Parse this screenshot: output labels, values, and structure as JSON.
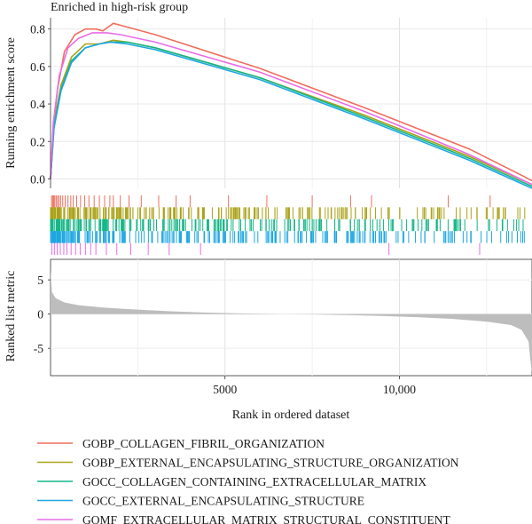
{
  "chart_data": {
    "type": "line",
    "title": "Enriched in high-risk group",
    "xlabel": "Rank in ordered dataset",
    "xlim": [
      0,
      13800
    ],
    "x_ticks": [
      5000,
      10000
    ],
    "x_tick_labels": [
      "5000",
      "10,000"
    ],
    "panels": {
      "running_score": {
        "ylabel": "Running enrichment score",
        "ylim": [
          -0.05,
          0.86
        ],
        "y_ticks": [
          0.0,
          0.2,
          0.4,
          0.6,
          0.8
        ],
        "y_tick_labels": [
          "0.0",
          "0.2",
          "0.4",
          "0.6",
          "0.8"
        ]
      },
      "ranked_metric": {
        "ylabel": "Ranked list metric",
        "ylim": [
          -9,
          8
        ],
        "y_ticks": [
          5,
          0,
          -5
        ],
        "y_tick_labels": [
          "5",
          "0",
          "-5"
        ],
        "points": [
          [
            0,
            6.5
          ],
          [
            40,
            3.2
          ],
          [
            150,
            2.3
          ],
          [
            400,
            1.7
          ],
          [
            800,
            1.3
          ],
          [
            1500,
            0.95
          ],
          [
            2500,
            0.65
          ],
          [
            3500,
            0.4
          ],
          [
            4500,
            0.22
          ],
          [
            5500,
            0.1
          ],
          [
            6500,
            0.02
          ],
          [
            7500,
            -0.05
          ],
          [
            8500,
            -0.15
          ],
          [
            9500,
            -0.28
          ],
          [
            10500,
            -0.45
          ],
          [
            11500,
            -0.7
          ],
          [
            12500,
            -1.1
          ],
          [
            13200,
            -1.6
          ],
          [
            13500,
            -2.3
          ],
          [
            13700,
            -4.0
          ],
          [
            13760,
            -7.0
          ],
          [
            13800,
            -8.5
          ]
        ]
      }
    },
    "series": [
      {
        "name": "GOBP_COLLAGEN_FIBRIL_ORGANIZATION",
        "color": "#ee6f5d",
        "points": [
          [
            0,
            0.0
          ],
          [
            80,
            0.28
          ],
          [
            200,
            0.48
          ],
          [
            400,
            0.68
          ],
          [
            700,
            0.77
          ],
          [
            1000,
            0.8
          ],
          [
            1300,
            0.8
          ],
          [
            1500,
            0.79
          ],
          [
            1800,
            0.83
          ],
          [
            2000,
            0.82
          ],
          [
            3000,
            0.77
          ],
          [
            6000,
            0.59
          ],
          [
            9000,
            0.38
          ],
          [
            12000,
            0.16
          ],
          [
            13600,
            0.01
          ],
          [
            13800,
            -0.01
          ]
        ],
        "hit_ranks": [
          30,
          60,
          90,
          120,
          160,
          200,
          240,
          290,
          350,
          420,
          500,
          580,
          650,
          750,
          860,
          980,
          1100,
          1250,
          1400,
          1550,
          1700,
          1800,
          2000,
          2250,
          2600,
          3100,
          3600,
          4000,
          5100,
          6200,
          7500,
          8600,
          9200,
          11400,
          12600
        ]
      },
      {
        "name": "GOBP_EXTERNAL_ENCAPSULATING_STRUCTURE_ORGANIZATION",
        "color": "#aaa219",
        "points": [
          [
            0,
            0.0
          ],
          [
            100,
            0.3
          ],
          [
            300,
            0.5
          ],
          [
            600,
            0.65
          ],
          [
            1000,
            0.72
          ],
          [
            1400,
            0.72
          ],
          [
            1800,
            0.74
          ],
          [
            2200,
            0.73
          ],
          [
            3000,
            0.7
          ],
          [
            6000,
            0.54
          ],
          [
            9000,
            0.34
          ],
          [
            12000,
            0.12
          ],
          [
            13800,
            -0.03
          ]
        ],
        "hit_ranks": []
      },
      {
        "name": "GOCC_COLLAGEN_CONTAINING_EXTRACELLULAR_MATRIX",
        "color": "#17b688",
        "points": [
          [
            0,
            0.0
          ],
          [
            100,
            0.28
          ],
          [
            300,
            0.48
          ],
          [
            600,
            0.63
          ],
          [
            1000,
            0.7
          ],
          [
            1400,
            0.72
          ],
          [
            1700,
            0.73
          ],
          [
            2200,
            0.73
          ],
          [
            3000,
            0.7
          ],
          [
            6000,
            0.54
          ],
          [
            9000,
            0.33
          ],
          [
            12000,
            0.11
          ],
          [
            13800,
            -0.04
          ]
        ],
        "hit_ranks": []
      },
      {
        "name": "GOCC_EXTERNAL_ENCAPSULATING_STRUCTURE",
        "color": "#1ea7e1",
        "points": [
          [
            0,
            0.0
          ],
          [
            100,
            0.27
          ],
          [
            300,
            0.47
          ],
          [
            600,
            0.62
          ],
          [
            1000,
            0.7
          ],
          [
            1400,
            0.72
          ],
          [
            1700,
            0.73
          ],
          [
            2200,
            0.72
          ],
          [
            3000,
            0.69
          ],
          [
            6000,
            0.53
          ],
          [
            9000,
            0.32
          ],
          [
            12000,
            0.1
          ],
          [
            13800,
            -0.05
          ]
        ],
        "hit_ranks": []
      },
      {
        "name": "GOMF_EXTRACELLULAR_MATRIX_STRUCTURAL_CONSTITUENT",
        "color": "#e86de8",
        "points": [
          [
            0,
            0.0
          ],
          [
            80,
            0.3
          ],
          [
            250,
            0.55
          ],
          [
            500,
            0.7
          ],
          [
            800,
            0.75
          ],
          [
            1200,
            0.78
          ],
          [
            1600,
            0.78
          ],
          [
            2000,
            0.77
          ],
          [
            3000,
            0.73
          ],
          [
            6000,
            0.57
          ],
          [
            9000,
            0.36
          ],
          [
            12000,
            0.13
          ],
          [
            13800,
            -0.03
          ]
        ],
        "hit_ranks": [
          40,
          110,
          190,
          280,
          380,
          470,
          590,
          720,
          850,
          1000,
          1150,
          1300,
          1600,
          1900,
          2300,
          2800,
          3400,
          4300,
          9700,
          12300
        ]
      }
    ],
    "grid": true
  }
}
